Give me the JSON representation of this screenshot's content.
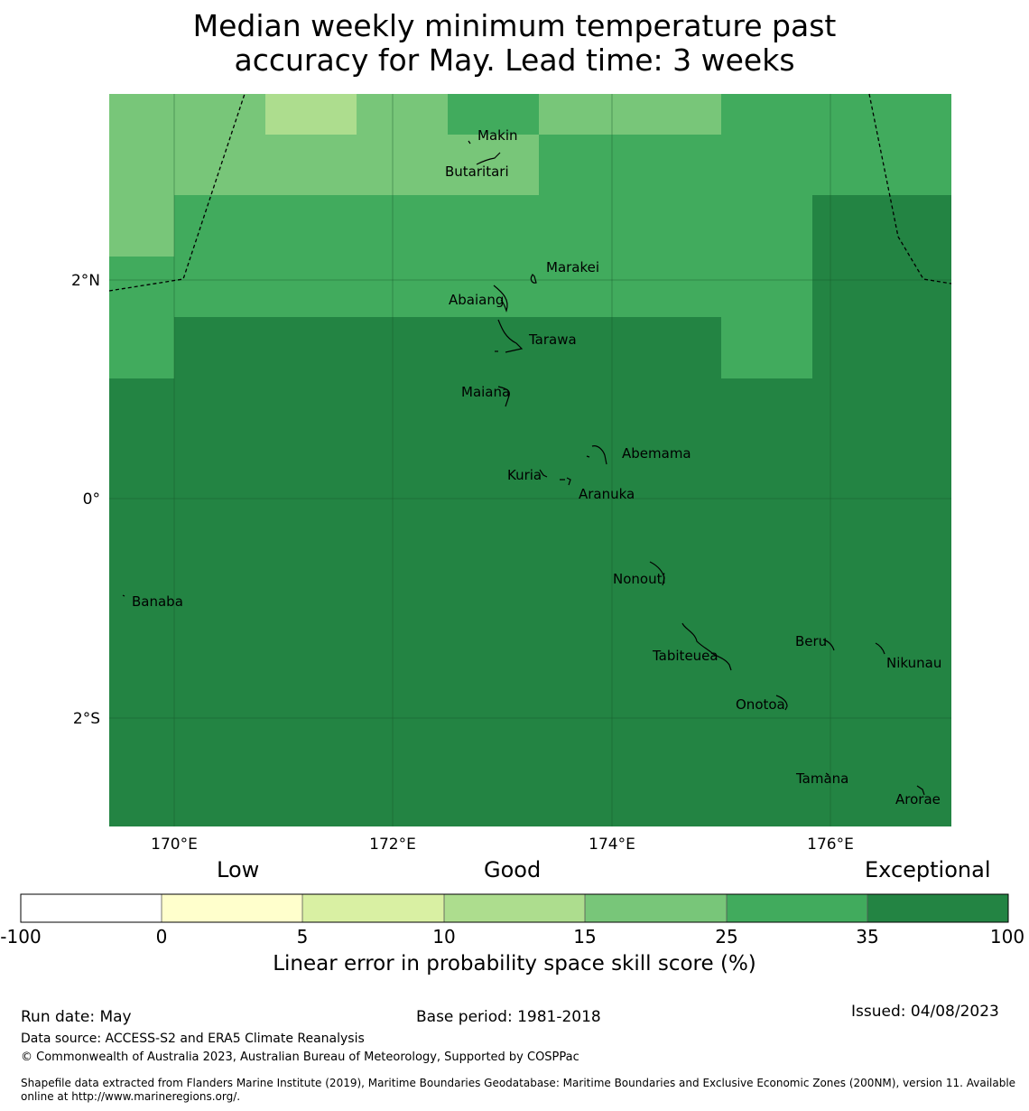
{
  "title_line1": "Median weekly minimum temperature past",
  "title_line2": "accuracy for May. Lead time: 3 weeks",
  "map": {
    "lat_labels": [
      "2°N",
      "0°",
      "2°S"
    ],
    "lon_labels": [
      "170°E",
      "172°E",
      "174°E",
      "176°E"
    ],
    "places": [
      {
        "name": "Makin",
        "lon": 173.0,
        "lat": 3.3
      },
      {
        "name": "Butaritari",
        "lon": 172.8,
        "lat": 3.0
      },
      {
        "name": "Marakei",
        "lon": 173.3,
        "lat": 2.0
      },
      {
        "name": "Abaiang",
        "lon": 173.0,
        "lat": 1.8
      },
      {
        "name": "Tarawa",
        "lon": 173.0,
        "lat": 1.4
      },
      {
        "name": "Maiana",
        "lon": 173.0,
        "lat": 0.9
      },
      {
        "name": "Abemama",
        "lon": 173.8,
        "lat": 0.4
      },
      {
        "name": "Kuria",
        "lon": 173.4,
        "lat": 0.2
      },
      {
        "name": "Aranuka",
        "lon": 173.6,
        "lat": 0.2
      },
      {
        "name": "Nonouti",
        "lon": 174.4,
        "lat": -0.6
      },
      {
        "name": "Banaba",
        "lon": 169.5,
        "lat": -0.9
      },
      {
        "name": "Beru",
        "lon": 176.0,
        "lat": -1.3
      },
      {
        "name": "Nikunau",
        "lon": 176.5,
        "lat": -1.4
      },
      {
        "name": "Tabiteuea",
        "lon": 174.8,
        "lat": -1.4
      },
      {
        "name": "Onotoa",
        "lon": 175.6,
        "lat": -1.8
      },
      {
        "name": "Tamana",
        "lon": 176.0,
        "lat": -2.5
      },
      {
        "name": "Arorae",
        "lon": 176.8,
        "lat": -2.6
      }
    ]
  },
  "colorbar": {
    "category_low": "Low",
    "category_good": "Good",
    "category_exceptional": "Exceptional",
    "ticks": [
      "-100",
      "0",
      "5",
      "10",
      "15",
      "25",
      "35",
      "100"
    ],
    "colors": [
      "#ffffff",
      "#ffffcc",
      "#d9f0a3",
      "#addd8e",
      "#78c679",
      "#41ab5d",
      "#238443"
    ],
    "label": "Linear error in probability space skill score (%)"
  },
  "footer": {
    "run_date": "Run date: May",
    "base_period": "Base period: 1981-2018",
    "issued": "Issued: 04/08/2023",
    "data_source": "Data source: ACCESS-S2 and ERA5 Climate Reanalysis",
    "copyright": "© Commonwealth of Australia 2023, Australian Bureau of Meteorology, Supported by COSPPac",
    "shapefile_line1": "Shapefile data extracted from Flanders Marine Institute (2019), Maritime Boundaries Geodatabase: Maritime Boundaries and Exclusive Economic Zones (200NM), version 11. Available",
    "shapefile_line2": "online at http://www.marineregions.org/."
  }
}
